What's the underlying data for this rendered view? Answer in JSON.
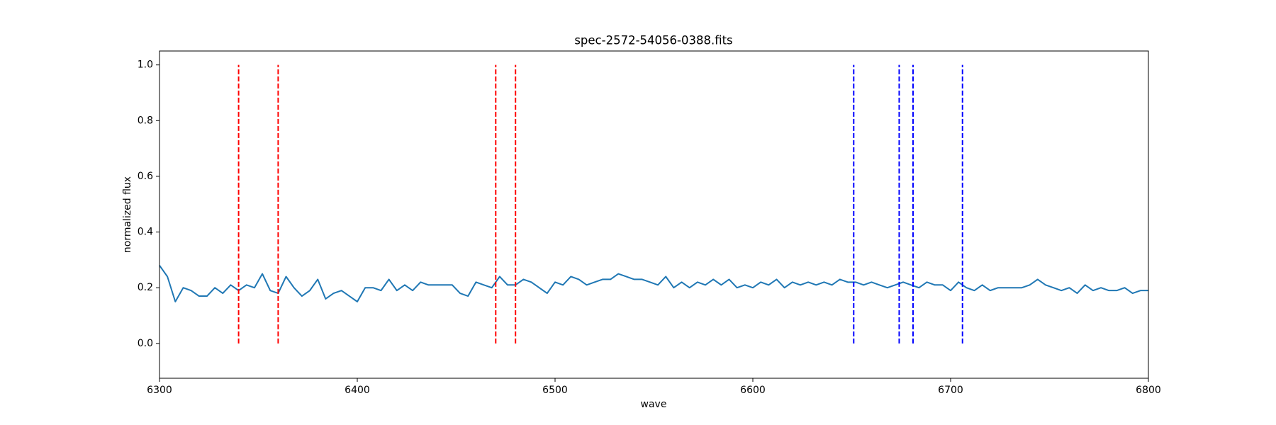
{
  "chart_data": {
    "type": "line",
    "title": "spec-2572-54056-0388.fits",
    "x_label": "wave",
    "y_label": "normalized flux",
    "xlim": [
      6300,
      6800
    ],
    "ylim": [
      -0.125,
      1.05
    ],
    "xticks": [
      6300,
      6400,
      6500,
      6600,
      6700,
      6800
    ],
    "yticks": [
      {
        "value": 0,
        "label": "0.0"
      },
      {
        "value": 0.2,
        "label": "0.2"
      },
      {
        "value": 0.4,
        "label": "0.4"
      },
      {
        "value": 0.6,
        "label": "0.6"
      },
      {
        "value": 0.8,
        "label": "0.8"
      },
      {
        "value": 1,
        "label": "1.0"
      }
    ],
    "grid": false,
    "x": [
      6300,
      6304,
      6308,
      6312,
      6316,
      6320,
      6324,
      6328,
      6332,
      6336,
      6340,
      6344,
      6348,
      6352,
      6356,
      6360,
      6364,
      6368,
      6372,
      6376,
      6380,
      6384,
      6388,
      6392,
      6396,
      6400,
      6404,
      6408,
      6412,
      6416,
      6420,
      6424,
      6428,
      6432,
      6436,
      6440,
      6444,
      6448,
      6452,
      6456,
      6460,
      6464,
      6468,
      6472,
      6476,
      6480,
      6484,
      6488,
      6492,
      6496,
      6500,
      6504,
      6508,
      6512,
      6516,
      6520,
      6524,
      6528,
      6532,
      6536,
      6540,
      6544,
      6548,
      6552,
      6556,
      6560,
      6564,
      6568,
      6572,
      6576,
      6580,
      6584,
      6588,
      6592,
      6596,
      6600,
      6604,
      6608,
      6612,
      6616,
      6620,
      6624,
      6628,
      6632,
      6636,
      6640,
      6644,
      6648,
      6652,
      6656,
      6660,
      6664,
      6668,
      6672,
      6676,
      6680,
      6684,
      6688,
      6692,
      6696,
      6700,
      6704,
      6708,
      6712,
      6716,
      6720,
      6724,
      6728,
      6732,
      6736,
      6740,
      6744,
      6748,
      6752,
      6756,
      6760,
      6764,
      6768,
      6772,
      6776,
      6780,
      6784,
      6788,
      6792,
      6796,
      6800
    ],
    "series": [
      {
        "color": "#1f77b4",
        "values": [
          0.28,
          0.24,
          0.15,
          0.2,
          0.19,
          0.17,
          0.17,
          0.2,
          0.18,
          0.21,
          0.19,
          0.21,
          0.2,
          0.25,
          0.19,
          0.18,
          0.24,
          0.2,
          0.17,
          0.19,
          0.23,
          0.16,
          0.18,
          0.19,
          0.17,
          0.15,
          0.2,
          0.2,
          0.19,
          0.23,
          0.19,
          0.21,
          0.19,
          0.22,
          0.21,
          0.21,
          0.21,
          0.21,
          0.18,
          0.17,
          0.22,
          0.21,
          0.2,
          0.24,
          0.21,
          0.21,
          0.23,
          0.22,
          0.2,
          0.18,
          0.22,
          0.21,
          0.24,
          0.23,
          0.21,
          0.22,
          0.23,
          0.23,
          0.25,
          0.24,
          0.23,
          0.23,
          0.22,
          0.21,
          0.24,
          0.2,
          0.22,
          0.2,
          0.22,
          0.21,
          0.23,
          0.21,
          0.23,
          0.2,
          0.21,
          0.2,
          0.22,
          0.21,
          0.23,
          0.2,
          0.22,
          0.21,
          0.22,
          0.21,
          0.22,
          0.21,
          0.23,
          0.22,
          0.22,
          0.21,
          0.22,
          0.21,
          0.2,
          0.21,
          0.22,
          0.21,
          0.2,
          0.22,
          0.21,
          0.21,
          0.19,
          0.22,
          0.2,
          0.19,
          0.21,
          0.19,
          0.2,
          0.2,
          0.2,
          0.2,
          0.21,
          0.23,
          0.21,
          0.2,
          0.19,
          0.2,
          0.18,
          0.21,
          0.19,
          0.2,
          0.19,
          0.19,
          0.2,
          0.18,
          0.19,
          0.19
        ]
      }
    ],
    "vline_range": [
      0,
      1
    ],
    "vlines": [
      {
        "color": "#ff0000",
        "x": [
          6340,
          6360,
          6470,
          6480
        ]
      },
      {
        "color": "#0000ff",
        "x": [
          6651,
          6674,
          6681,
          6706
        ]
      }
    ]
  }
}
